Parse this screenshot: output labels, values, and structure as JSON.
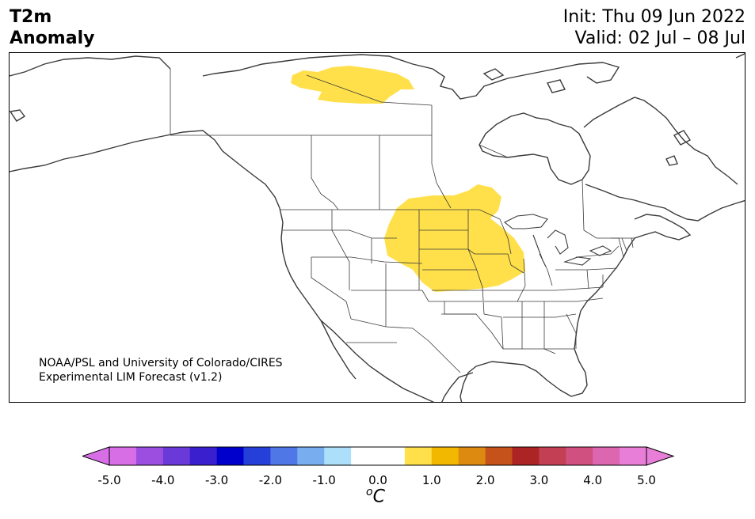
{
  "header": {
    "title_line1": "T2m",
    "title_line2": "Anomaly",
    "init_label": "Init: Thu 09 Jun 2022",
    "valid_label": "Valid: 02 Jul – 08 Jul"
  },
  "credit": {
    "line1": "NOAA/PSL and University of Colorado/CIRES",
    "line2": "Experimental LIM Forecast (v1.2)"
  },
  "colorbar": {
    "tick_labels": [
      "-5.0",
      "-4.0",
      "-3.0",
      "-2.0",
      "-1.0",
      "0.0",
      "1.0",
      "2.0",
      "3.0",
      "4.0",
      "5.0"
    ],
    "unit_symbol": "o",
    "unit_letter": "C",
    "colors": [
      "#d86ee6",
      "#9c4ee0",
      "#6a3ad8",
      "#3a1fcf",
      "#0000cc",
      "#2540d8",
      "#4f78e6",
      "#78aef0",
      "#ace0fa",
      "#ffffff",
      "#ffffff",
      "#ffe04a",
      "#f2b800",
      "#dc8a10",
      "#c4521a",
      "#ad2424",
      "#c23f54",
      "#d05080",
      "#dc66b0",
      "#e87ed8"
    ],
    "under_color": "#d86ee6",
    "over_color": "#e87ed8"
  },
  "anomaly_regions": [
    {
      "name": "central-us-plains",
      "level": "0.5 to 1.0",
      "color": "#ffe04a"
    },
    {
      "name": "northern-canada-arctic",
      "level": "0.5 to 1.0",
      "color": "#ffe04a"
    }
  ]
}
